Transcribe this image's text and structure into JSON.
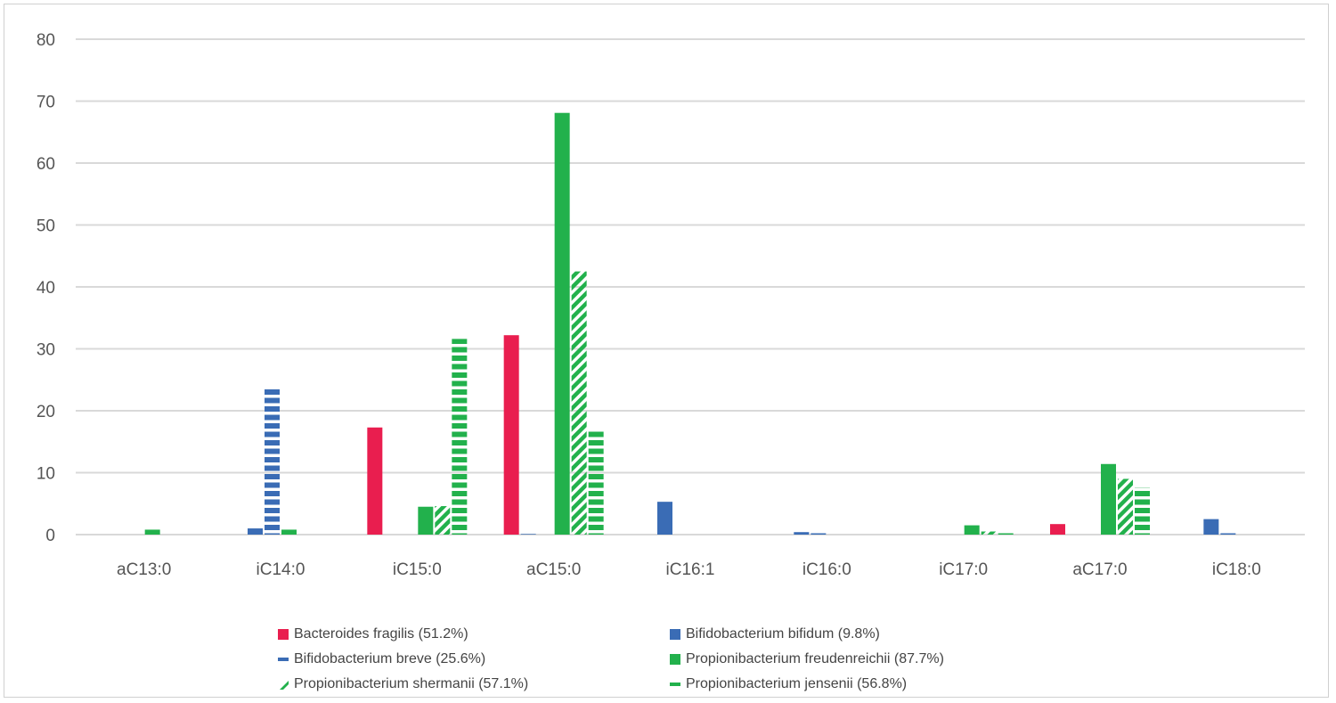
{
  "chart_data": {
    "type": "bar",
    "title": "",
    "xlabel": "",
    "ylabel": "",
    "ylim": [
      0,
      80
    ],
    "yticks": [
      0,
      10,
      20,
      30,
      40,
      50,
      60,
      70,
      80
    ],
    "grid": true,
    "legend_position": "bottom",
    "categories": [
      "aC13:0",
      "iC14:0",
      "iC15:0",
      "aC15:0",
      "iC16:1",
      "iC16:0",
      "iC17:0",
      "aC17:0",
      "iC18:0"
    ],
    "series": [
      {
        "name": "Bacteroides fragilis (51.2%)",
        "color": "#e91e4f",
        "pattern": "solid",
        "values": [
          0,
          0,
          17.3,
          32.2,
          0,
          0,
          0,
          1.7,
          0
        ]
      },
      {
        "name": "Bifidobacterium bifidum (9.8%)",
        "color": "#3a6cb5",
        "pattern": "solid",
        "values": [
          0,
          1.0,
          0,
          0.1,
          5.3,
          0.4,
          0,
          0,
          2.5
        ]
      },
      {
        "name": "Bifidobacterium breve (25.6%)",
        "color": "#3a6cb5",
        "pattern": "hdash",
        "values": [
          0,
          23.7,
          0,
          0,
          0,
          0.4,
          0,
          0,
          0.4
        ]
      },
      {
        "name": "Propionibacterium freudenreichii (87.7%)",
        "color": "#22b14c",
        "pattern": "solid",
        "values": [
          0.8,
          0.8,
          4.5,
          68.1,
          0,
          0,
          1.5,
          11.4,
          0
        ]
      },
      {
        "name": "Propionibacterium shermanii (57.1%)",
        "color": "#22b14c",
        "pattern": "diag",
        "values": [
          0,
          0,
          4.6,
          42.5,
          0,
          0,
          0.5,
          9.0,
          0
        ]
      },
      {
        "name": "Propionibacterium jensenii (56.8%)",
        "color": "#22b14c",
        "pattern": "hdash",
        "values": [
          0,
          0,
          31.6,
          16.8,
          0,
          0,
          0.3,
          7.6,
          0
        ]
      }
    ]
  }
}
